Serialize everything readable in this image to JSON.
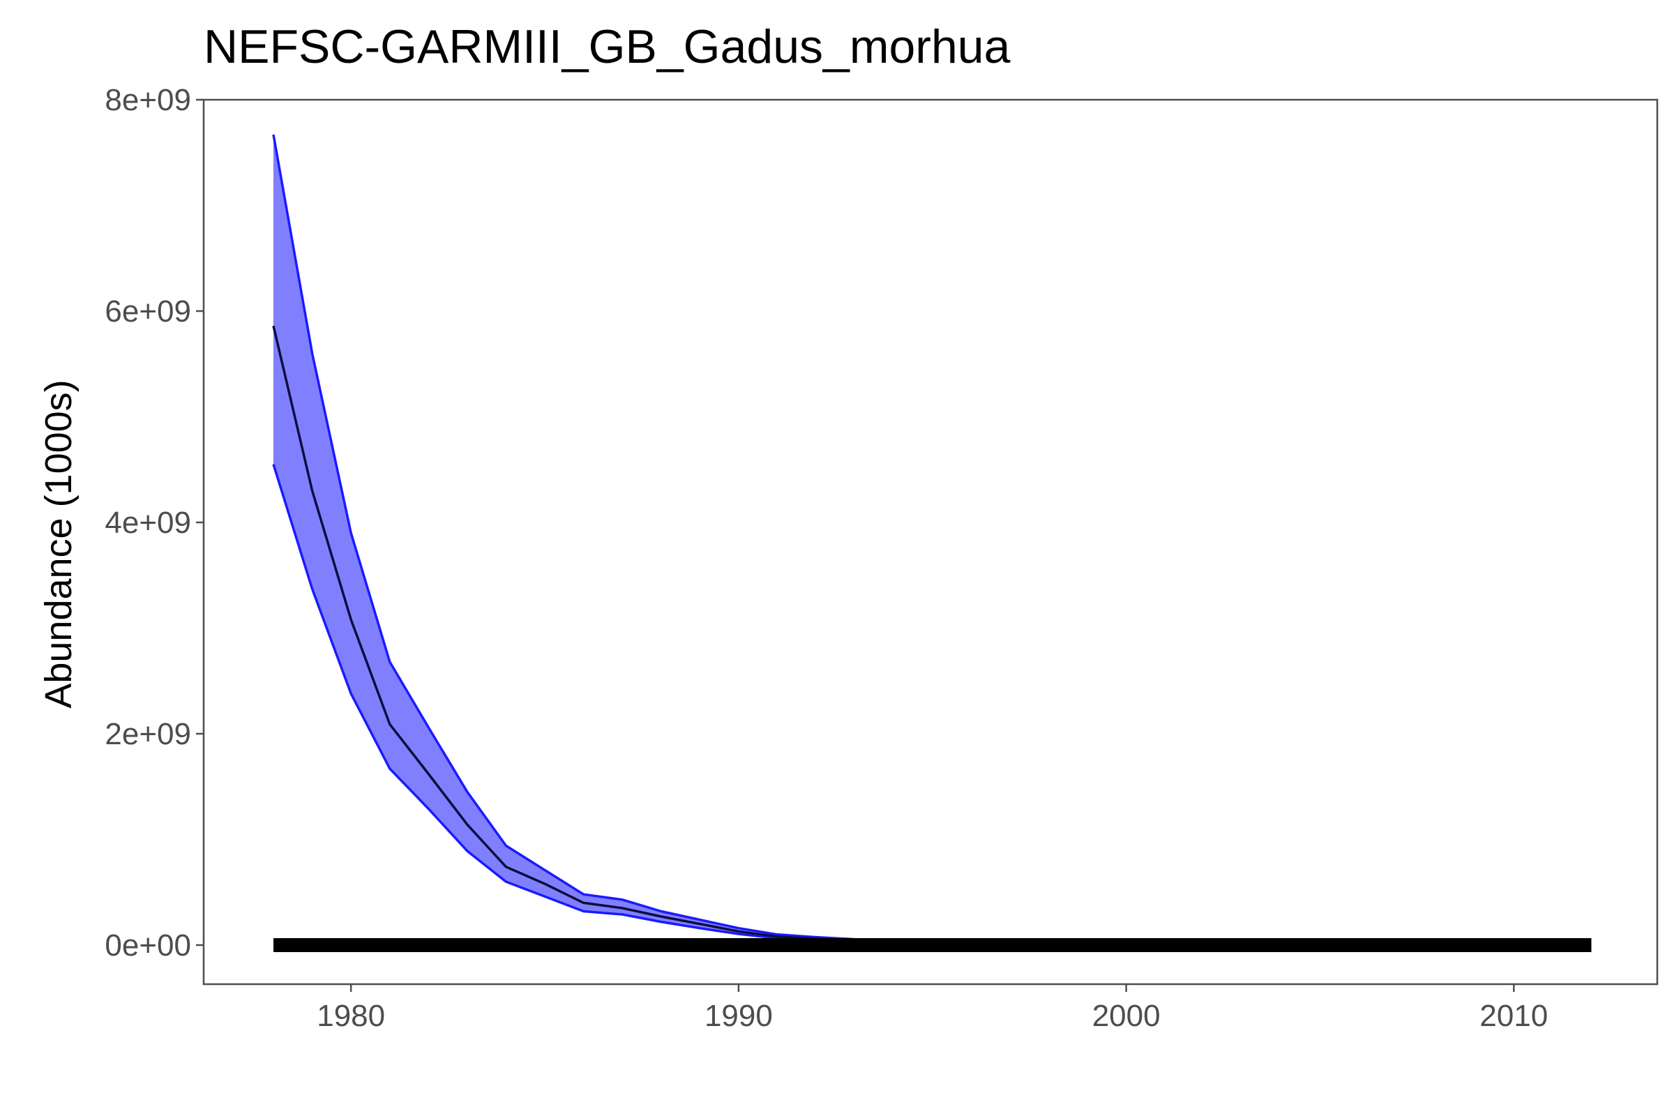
{
  "chart_data": {
    "type": "line",
    "title": "NEFSC-GARMIII_GB_Gadus_morhua",
    "xlabel": "",
    "ylabel": "Abundance (1000s)",
    "xlim": [
      1976.2,
      2013.7
    ],
    "ylim": [
      -370000000,
      8000000000
    ],
    "x_ticks": [
      1980,
      1990,
      2000,
      2010
    ],
    "x_tick_labels": [
      "1980",
      "1990",
      "2000",
      "2010"
    ],
    "y_ticks": [
      0,
      2000000000,
      4000000000,
      6000000000,
      8000000000
    ],
    "y_tick_labels": [
      "0e+00",
      "2e+09",
      "4e+09",
      "6e+09",
      "8e+09"
    ],
    "grid": false,
    "colors": {
      "band_fill": "#8080ff",
      "band_edge": "#1a1aff",
      "mean_line": "#0d0d40",
      "baseline": "#000000",
      "axis": "#4d4d4d"
    },
    "x": [
      1978,
      1979,
      1980,
      1981,
      1982,
      1983,
      1984,
      1985,
      1986,
      1987,
      1988,
      1989,
      1990,
      1991,
      1992,
      1993
    ],
    "series": [
      {
        "role": "upper",
        "values": [
          7670000000,
          5600000000,
          3900000000,
          2680000000,
          2060000000,
          1450000000,
          940000000,
          710000000,
          480000000,
          430000000,
          320000000,
          240000000,
          160000000,
          100000000,
          75000000,
          55000000
        ]
      },
      {
        "role": "mean",
        "values": [
          5860000000,
          4300000000,
          3080000000,
          2090000000,
          1620000000,
          1140000000,
          740000000,
          580000000,
          400000000,
          350000000,
          270000000,
          200000000,
          130000000,
          80000000,
          60000000,
          45000000
        ]
      },
      {
        "role": "lower",
        "values": [
          4550000000,
          3370000000,
          2380000000,
          1670000000,
          1290000000,
          890000000,
          600000000,
          460000000,
          320000000,
          290000000,
          220000000,
          160000000,
          105000000,
          65000000,
          48000000,
          38000000
        ]
      }
    ],
    "baseline": {
      "x": [
        1978,
        2012
      ],
      "value": 0
    }
  }
}
